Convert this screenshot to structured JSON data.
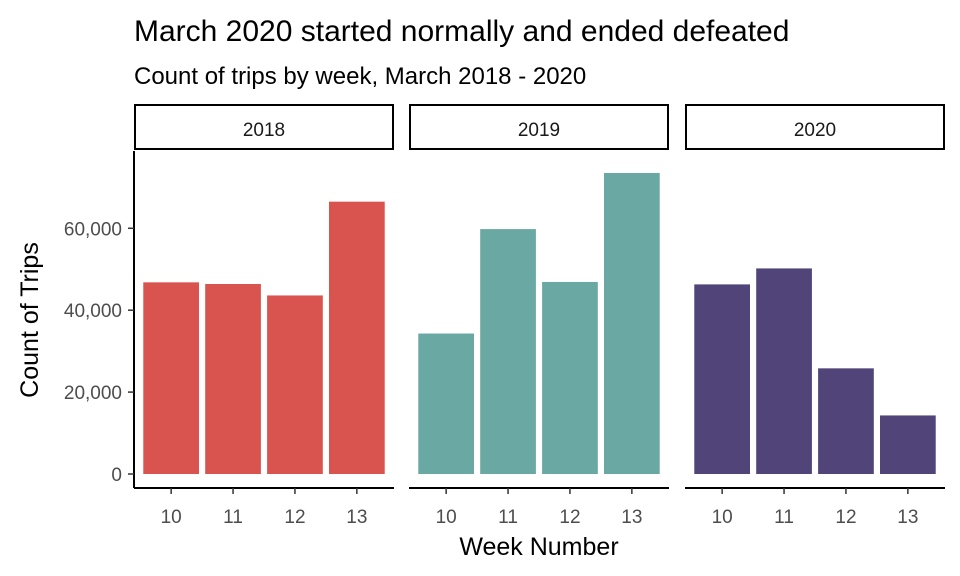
{
  "chart_data": {
    "type": "bar",
    "title": "March 2020 started normally and ended defeated",
    "subtitle": "Count of trips by week, March 2018 - 2020",
    "xlabel": "Week Number",
    "ylabel": "Count of Trips",
    "categories": [
      "10",
      "11",
      "12",
      "13"
    ],
    "ylim": [
      0,
      72000
    ],
    "yticks": [
      0,
      20000,
      40000,
      60000
    ],
    "ytick_labels": [
      "0",
      "20,000",
      "40,000",
      "60,000"
    ],
    "grid": false,
    "legend": "none",
    "facets": [
      {
        "name": "2018",
        "color": "#D9534F",
        "values": [
          46800,
          46400,
          43600,
          66500
        ]
      },
      {
        "name": "2019",
        "color": "#69A8A3",
        "values": [
          34300,
          59800,
          46900,
          73500
        ]
      },
      {
        "name": "2020",
        "color": "#514478",
        "values": [
          46300,
          50200,
          25800,
          14300
        ]
      }
    ]
  }
}
